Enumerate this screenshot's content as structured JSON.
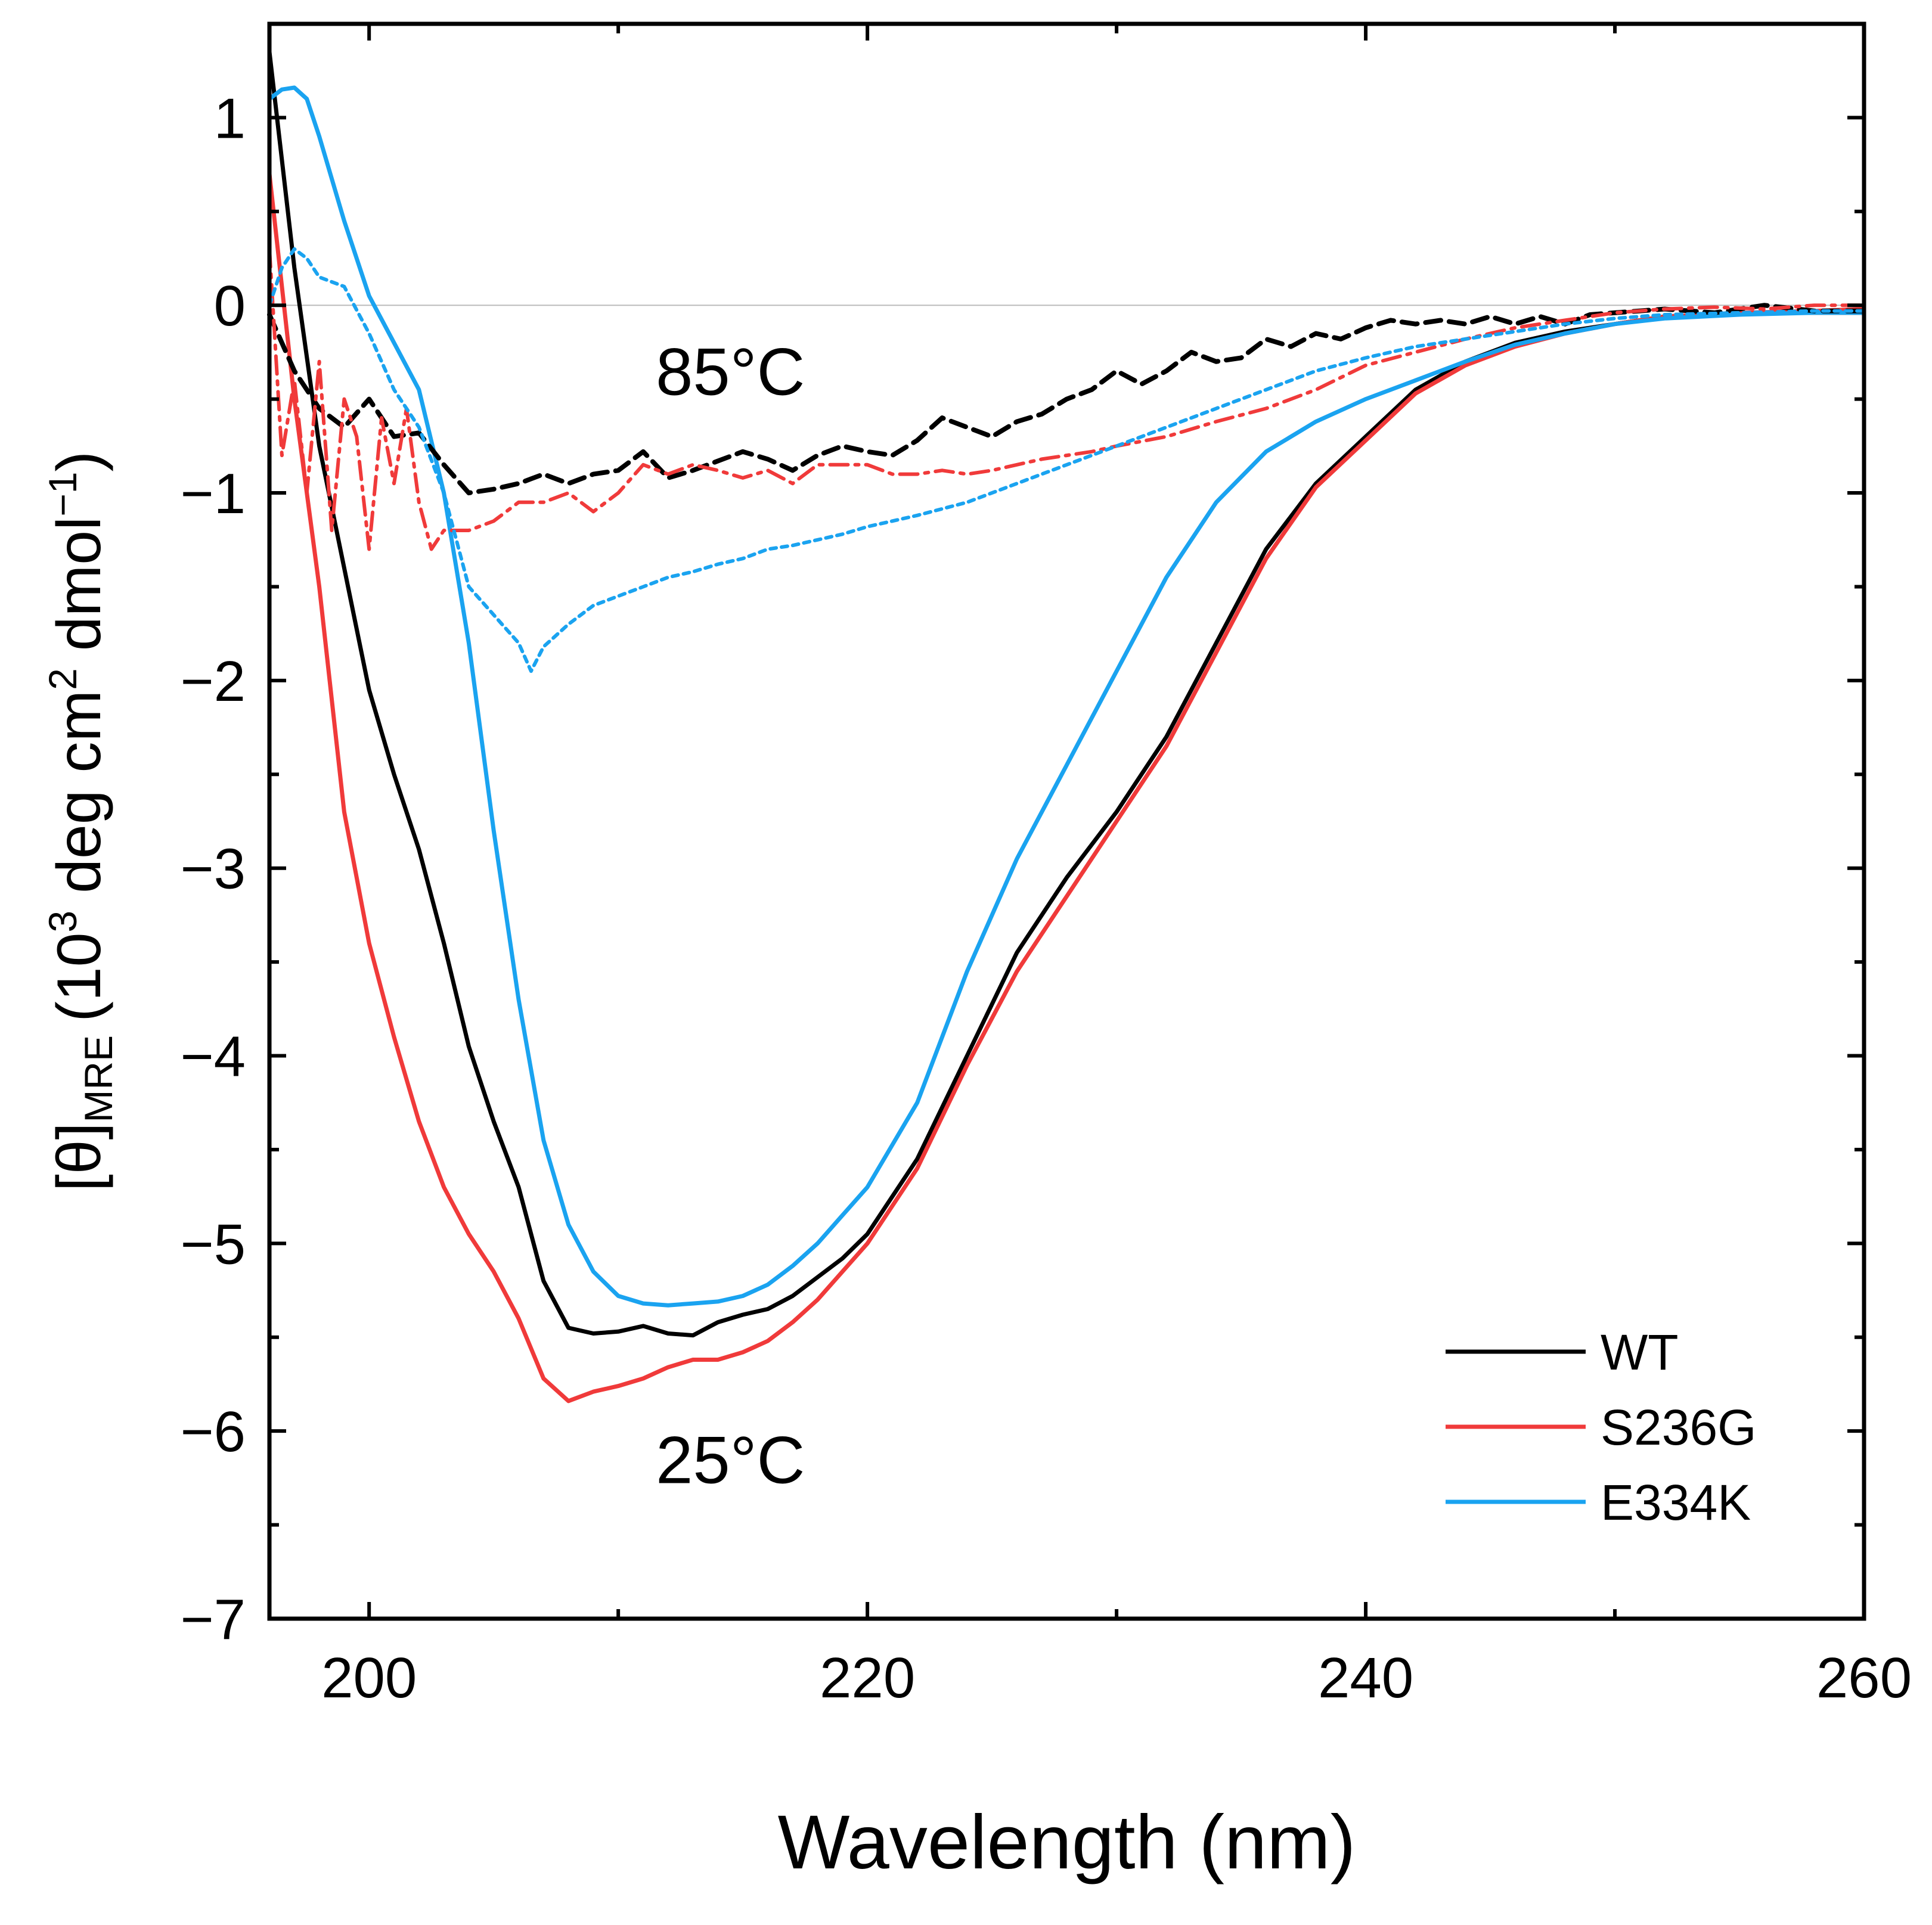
{
  "chart_data": {
    "type": "line",
    "title": "",
    "xlabel": "Wavelength (nm)",
    "ylabel": {
      "main": "[θ]",
      "subscript": "MRE",
      "units_open": "(10",
      "units_sup1": "3",
      "units_mid": " deg cm",
      "units_sup2": "2",
      "units_mid2": " dmol",
      "units_sup3": "−1",
      "units_close": ")"
    },
    "xlim": [
      196,
      260
    ],
    "ylim": [
      -7,
      1.5
    ],
    "xticks": [
      200,
      220,
      240,
      260
    ],
    "yticks": [
      1,
      0,
      -1,
      -2,
      -3,
      -4,
      -5,
      -6,
      -7
    ],
    "ytick_labels": [
      "1",
      "0",
      "−1",
      "−2",
      "−3",
      "−4",
      "−5",
      "−6",
      "−7"
    ],
    "grid": false,
    "legend_position": "bottom-right",
    "annotations": [
      {
        "text": "85°C",
        "x": 214.5,
        "y": -0.35
      },
      {
        "text": "25°C",
        "x": 214.5,
        "y": -6.15
      }
    ],
    "series": [
      {
        "name": "WT",
        "temperature": "25°C",
        "color": "#000000",
        "style": "solid",
        "legend": true,
        "x": [
          196,
          197,
          198,
          199,
          200,
          201,
          202,
          203,
          204,
          205,
          206,
          207,
          208,
          209,
          210,
          211,
          212,
          213,
          214,
          215,
          216,
          217,
          218,
          219,
          220,
          222,
          224,
          226,
          228,
          230,
          232,
          234,
          236,
          238,
          240,
          242,
          244,
          246,
          248,
          250,
          252,
          255,
          258,
          260
        ],
        "y": [
          1.35,
          0.2,
          -0.75,
          -1.4,
          -2.05,
          -2.5,
          -2.9,
          -3.4,
          -3.95,
          -4.35,
          -4.7,
          -5.2,
          -5.45,
          -5.48,
          -5.47,
          -5.44,
          -5.48,
          -5.49,
          -5.42,
          -5.38,
          -5.35,
          -5.28,
          -5.18,
          -5.08,
          -4.95,
          -4.55,
          -4.0,
          -3.45,
          -3.05,
          -2.7,
          -2.3,
          -1.8,
          -1.3,
          -0.95,
          -0.7,
          -0.45,
          -0.3,
          -0.2,
          -0.14,
          -0.1,
          -0.06,
          -0.04,
          -0.04,
          -0.04
        ]
      },
      {
        "name": "S236G",
        "temperature": "25°C",
        "color": "#f03a3a",
        "style": "solid",
        "legend": true,
        "x": [
          196,
          197,
          198,
          199,
          200,
          201,
          202,
          203,
          204,
          205,
          206,
          207,
          208,
          209,
          210,
          211,
          212,
          213,
          214,
          215,
          216,
          217,
          218,
          219,
          220,
          222,
          224,
          226,
          228,
          230,
          232,
          234,
          236,
          238,
          240,
          242,
          244,
          246,
          248,
          250,
          252,
          255,
          258,
          260
        ],
        "y": [
          0.7,
          -0.5,
          -1.5,
          -2.7,
          -3.4,
          -3.9,
          -4.35,
          -4.7,
          -4.95,
          -5.15,
          -5.4,
          -5.72,
          -5.84,
          -5.79,
          -5.76,
          -5.72,
          -5.66,
          -5.62,
          -5.62,
          -5.58,
          -5.52,
          -5.42,
          -5.3,
          -5.15,
          -5.0,
          -4.6,
          -4.05,
          -3.55,
          -3.15,
          -2.75,
          -2.35,
          -1.85,
          -1.35,
          -0.97,
          -0.72,
          -0.47,
          -0.32,
          -0.22,
          -0.15,
          -0.1,
          -0.06,
          -0.04,
          -0.03,
          -0.02
        ]
      },
      {
        "name": "E334K",
        "temperature": "25°C",
        "color": "#1aa3f0",
        "style": "solid",
        "legend": true,
        "x": [
          196,
          196.5,
          197,
          197.5,
          198,
          199,
          200,
          201,
          202,
          203,
          204,
          205,
          206,
          207,
          208,
          209,
          210,
          211,
          212,
          213,
          214,
          215,
          216,
          217,
          218,
          219,
          220,
          222,
          224,
          226,
          228,
          230,
          232,
          234,
          236,
          238,
          240,
          242,
          244,
          246,
          248,
          250,
          252,
          255,
          258,
          260
        ],
        "y": [
          1.1,
          1.15,
          1.16,
          1.1,
          0.9,
          0.45,
          0.05,
          -0.2,
          -0.45,
          -1.0,
          -1.8,
          -2.8,
          -3.7,
          -4.45,
          -4.9,
          -5.15,
          -5.28,
          -5.32,
          -5.33,
          -5.32,
          -5.31,
          -5.28,
          -5.22,
          -5.12,
          -5.0,
          -4.85,
          -4.7,
          -4.25,
          -3.55,
          -2.95,
          -2.45,
          -1.95,
          -1.45,
          -1.05,
          -0.78,
          -0.62,
          -0.5,
          -0.4,
          -0.3,
          -0.21,
          -0.15,
          -0.1,
          -0.07,
          -0.05,
          -0.04,
          -0.04
        ]
      },
      {
        "name": "WT 85°C",
        "temperature": "85°C",
        "color": "#000000",
        "style": "dash",
        "legend": false,
        "x": [
          196,
          197,
          198,
          199,
          200,
          201,
          202,
          203,
          204,
          205,
          206,
          207,
          208,
          209,
          210,
          211,
          212,
          213,
          214,
          215,
          216,
          217,
          218,
          219,
          220,
          221,
          222,
          223,
          224,
          225,
          226,
          227,
          228,
          229,
          230,
          231,
          232,
          233,
          234,
          235,
          236,
          237,
          238,
          239,
          240,
          241,
          242,
          243,
          244,
          245,
          246,
          247,
          248,
          249,
          250,
          252,
          254,
          256,
          258,
          260
        ],
        "y": [
          -0.05,
          -0.35,
          -0.55,
          -0.65,
          -0.5,
          -0.7,
          -0.68,
          -0.85,
          -1.0,
          -0.98,
          -0.95,
          -0.9,
          -0.95,
          -0.9,
          -0.88,
          -0.78,
          -0.92,
          -0.88,
          -0.83,
          -0.78,
          -0.82,
          -0.88,
          -0.8,
          -0.75,
          -0.78,
          -0.8,
          -0.72,
          -0.6,
          -0.65,
          -0.7,
          -0.62,
          -0.58,
          -0.5,
          -0.45,
          -0.35,
          -0.42,
          -0.35,
          -0.25,
          -0.3,
          -0.28,
          -0.18,
          -0.22,
          -0.15,
          -0.18,
          -0.12,
          -0.08,
          -0.1,
          -0.08,
          -0.1,
          -0.06,
          -0.1,
          -0.06,
          -0.1,
          -0.05,
          -0.04,
          -0.02,
          -0.04,
          0.0,
          -0.03,
          -0.03
        ]
      },
      {
        "name": "S236G 85°C",
        "temperature": "85°C",
        "color": "#f03a3a",
        "style": "dashdot",
        "legend": false,
        "x": [
          196,
          196.5,
          197,
          197.5,
          198,
          198.5,
          199,
          199.5,
          200,
          200.5,
          201,
          201.5,
          202,
          202.5,
          203,
          204,
          205,
          206,
          207,
          208,
          209,
          210,
          211,
          212,
          213,
          214,
          215,
          216,
          217,
          218,
          219,
          220,
          221,
          222,
          223,
          224,
          225,
          226,
          227,
          228,
          229,
          230,
          232,
          234,
          236,
          238,
          240,
          242,
          244,
          246,
          248,
          250,
          252,
          254,
          256,
          258,
          260
        ],
        "y": [
          0.3,
          -0.8,
          -0.4,
          -1.0,
          -0.3,
          -1.2,
          -0.5,
          -0.7,
          -1.3,
          -0.6,
          -0.95,
          -0.55,
          -1.05,
          -1.3,
          -1.2,
          -1.2,
          -1.15,
          -1.05,
          -1.05,
          -1.0,
          -1.1,
          -1.0,
          -0.85,
          -0.9,
          -0.85,
          -0.88,
          -0.92,
          -0.88,
          -0.95,
          -0.85,
          -0.85,
          -0.85,
          -0.9,
          -0.9,
          -0.88,
          -0.9,
          -0.88,
          -0.85,
          -0.82,
          -0.8,
          -0.78,
          -0.75,
          -0.7,
          -0.62,
          -0.55,
          -0.45,
          -0.32,
          -0.25,
          -0.18,
          -0.12,
          -0.08,
          -0.04,
          -0.02,
          -0.01,
          -0.02,
          0.0,
          0.0
        ]
      },
      {
        "name": "E334K 85°C",
        "temperature": "85°C",
        "color": "#1aa3f0",
        "style": "dot",
        "legend": false,
        "x": [
          196,
          196.5,
          197,
          197.5,
          198,
          199,
          200,
          201,
          202,
          203,
          204,
          205,
          206,
          206.5,
          207,
          208,
          209,
          210,
          211,
          212,
          213,
          214,
          215,
          216,
          217,
          218,
          219,
          220,
          221,
          222,
          224,
          226,
          228,
          230,
          232,
          234,
          236,
          238,
          240,
          242,
          244,
          246,
          248,
          250,
          252,
          255,
          258,
          260
        ],
        "y": [
          0.0,
          0.2,
          0.3,
          0.25,
          0.15,
          0.1,
          -0.15,
          -0.45,
          -0.65,
          -1.0,
          -1.5,
          -1.65,
          -1.8,
          -1.95,
          -1.82,
          -1.7,
          -1.6,
          -1.55,
          -1.5,
          -1.45,
          -1.42,
          -1.38,
          -1.35,
          -1.3,
          -1.28,
          -1.25,
          -1.22,
          -1.18,
          -1.15,
          -1.12,
          -1.05,
          -0.95,
          -0.85,
          -0.75,
          -0.65,
          -0.55,
          -0.45,
          -0.35,
          -0.28,
          -0.22,
          -0.18,
          -0.14,
          -0.1,
          -0.07,
          -0.05,
          -0.04,
          -0.03,
          -0.03
        ]
      }
    ]
  }
}
